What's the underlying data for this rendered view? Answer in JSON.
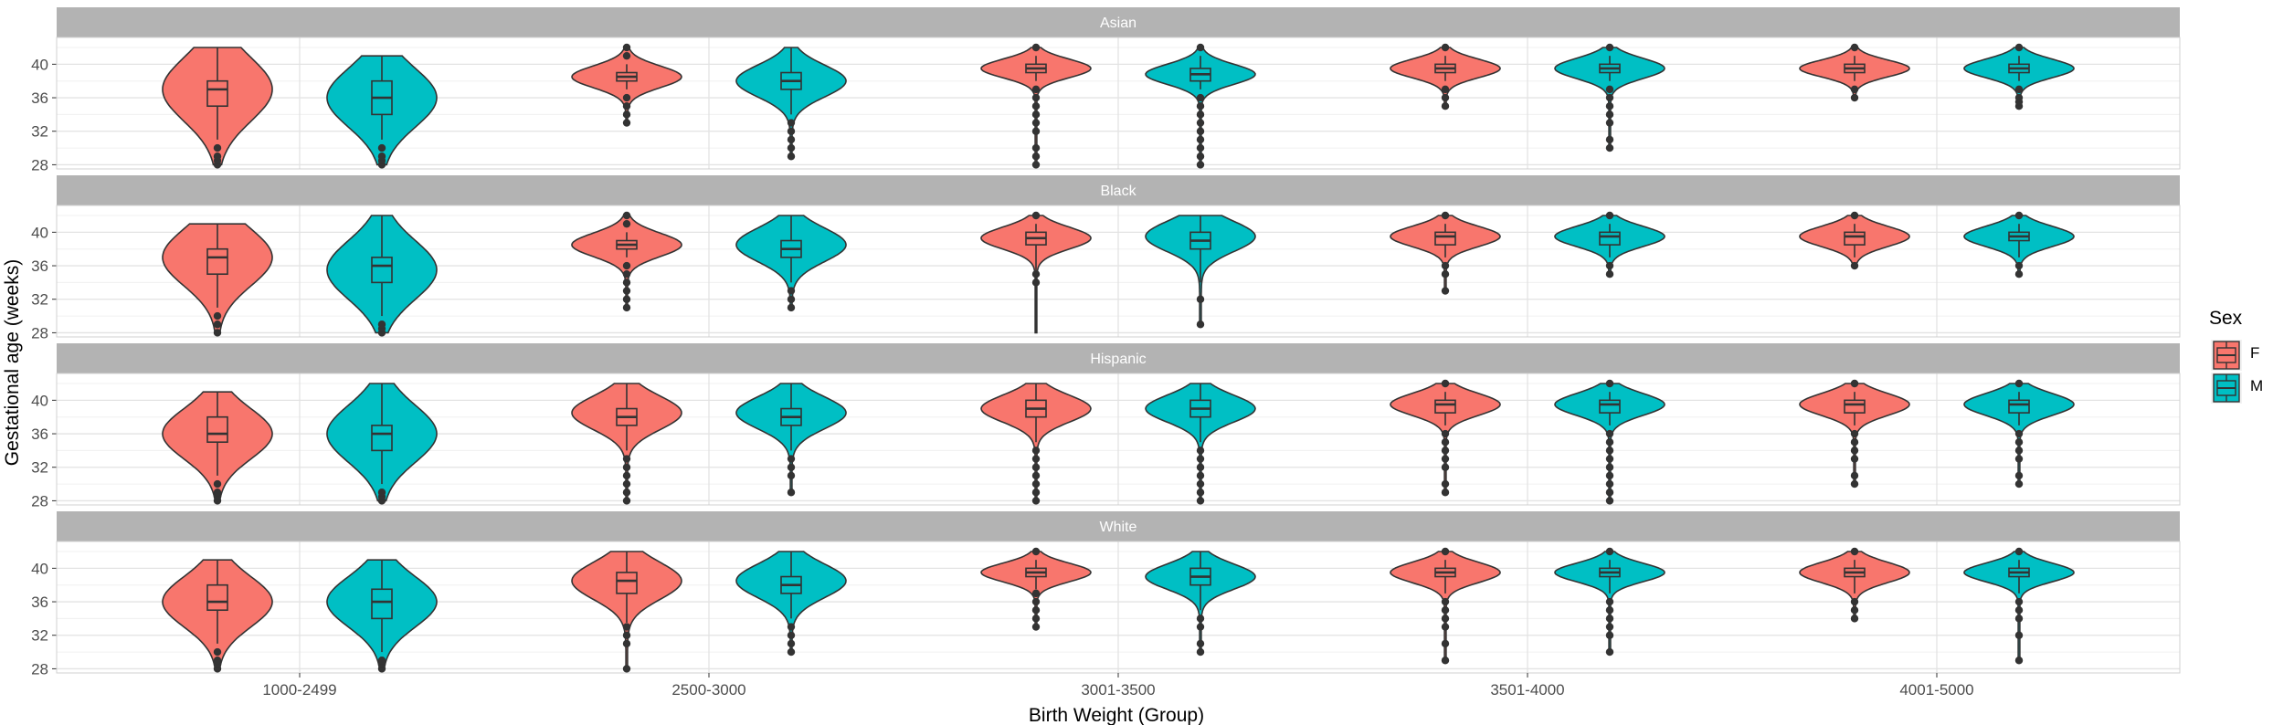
{
  "chart_data": {
    "type": "violin",
    "facets": [
      "Asian",
      "Black",
      "Hispanic",
      "White"
    ],
    "categories": [
      "1000-2499",
      "2500-3000",
      "3001-3500",
      "3501-4000",
      "4001-5000"
    ],
    "xlabel": "Birth Weight (Group)",
    "ylabel": "Gestational age (weeks)",
    "y_ticks": [
      28,
      32,
      36,
      40
    ],
    "ylim": [
      27.5,
      43.2
    ],
    "grid": true,
    "legend": {
      "title": "Sex",
      "position": "right",
      "entries": [
        "F",
        "M"
      ]
    },
    "colors": {
      "F": "#F8766D",
      "M": "#00BFC4",
      "strip": "#b3b3b3",
      "outline": "#333333"
    },
    "panels": {
      "Asian": {
        "F": [
          {
            "violin": {
              "min": 28,
              "max": 42,
              "mode": 37,
              "spread": 3.8
            },
            "box": {
              "q1": 35,
              "median": 37,
              "q3": 38,
              "low": 31,
              "high": 42
            },
            "outliers": [
              28,
              28.5,
              29,
              30
            ]
          },
          {
            "violin": {
              "min": 33,
              "max": 42,
              "mode": 38.5,
              "spread": 1.3
            },
            "box": {
              "q1": 38,
              "median": 38.5,
              "q3": 39,
              "low": 37,
              "high": 40
            },
            "outliers": [
              33,
              34,
              35,
              36,
              41,
              42
            ]
          },
          {
            "violin": {
              "min": 28,
              "max": 42,
              "mode": 39.5,
              "spread": 1.1
            },
            "box": {
              "q1": 39,
              "median": 39.5,
              "q3": 40,
              "low": 38,
              "high": 41
            },
            "outliers": [
              28,
              29,
              30,
              32,
              33,
              34,
              35,
              36,
              37,
              42
            ]
          },
          {
            "violin": {
              "min": 35,
              "max": 42,
              "mode": 39.5,
              "spread": 1.1
            },
            "box": {
              "q1": 39,
              "median": 39.5,
              "q3": 40,
              "low": 38,
              "high": 41
            },
            "outliers": [
              35,
              36,
              37,
              42
            ]
          },
          {
            "violin": {
              "min": 36,
              "max": 42,
              "mode": 39.5,
              "spread": 1.0
            },
            "box": {
              "q1": 39,
              "median": 39.5,
              "q3": 40,
              "low": 38,
              "high": 41
            },
            "outliers": [
              36,
              37,
              42
            ]
          }
        ],
        "M": [
          {
            "violin": {
              "min": 28,
              "max": 41,
              "mode": 36,
              "spread": 3.5
            },
            "box": {
              "q1": 34,
              "median": 36,
              "q3": 38,
              "low": 31,
              "high": 41
            },
            "outliers": [
              28,
              28.5,
              29,
              30
            ]
          },
          {
            "violin": {
              "min": 29,
              "max": 42,
              "mode": 38,
              "spread": 1.9
            },
            "box": {
              "q1": 37,
              "median": 38,
              "q3": 39,
              "low": 34,
              "high": 42
            },
            "outliers": [
              29,
              30,
              31,
              32,
              33
            ]
          },
          {
            "violin": {
              "min": 28,
              "max": 42,
              "mode": 38.8,
              "spread": 1.2
            },
            "box": {
              "q1": 38,
              "median": 38.8,
              "q3": 39.5,
              "low": 37,
              "high": 41
            },
            "outliers": [
              28,
              29,
              30,
              31,
              32,
              33,
              34,
              35,
              36,
              42
            ]
          },
          {
            "violin": {
              "min": 30,
              "max": 42,
              "mode": 39.5,
              "spread": 1.2
            },
            "box": {
              "q1": 39,
              "median": 39.5,
              "q3": 40,
              "low": 38,
              "high": 41
            },
            "outliers": [
              30,
              31,
              33,
              34,
              35,
              36,
              37,
              42
            ]
          },
          {
            "violin": {
              "min": 35,
              "max": 42,
              "mode": 39.5,
              "spread": 1.1
            },
            "box": {
              "q1": 39,
              "median": 39.5,
              "q3": 40,
              "low": 38,
              "high": 41
            },
            "outliers": [
              35,
              35.5,
              36,
              37,
              42
            ]
          }
        ]
      },
      "Black": {
        "F": [
          {
            "violin": {
              "min": 28,
              "max": 41,
              "mode": 37,
              "spread": 3.4
            },
            "box": {
              "q1": 35,
              "median": 37,
              "q3": 38,
              "low": 31,
              "high": 41
            },
            "outliers": [
              28,
              29,
              30
            ]
          },
          {
            "violin": {
              "min": 31,
              "max": 42,
              "mode": 38.5,
              "spread": 1.4
            },
            "box": {
              "q1": 38,
              "median": 38.5,
              "q3": 39,
              "low": 37,
              "high": 40
            },
            "outliers": [
              31,
              32,
              33,
              34,
              35,
              36,
              41,
              42
            ]
          },
          {
            "violin": {
              "min": 28,
              "max": 42,
              "mode": 39.3,
              "spread": 1.3
            },
            "box": {
              "q1": 38.5,
              "median": 39.3,
              "q3": 40,
              "low": 28,
              "high": 41
            },
            "outliers": [
              34,
              35,
              42
            ]
          },
          {
            "violin": {
              "min": 33,
              "max": 42,
              "mode": 39.5,
              "spread": 1.2
            },
            "box": {
              "q1": 38.5,
              "median": 39.5,
              "q3": 40,
              "low": 37,
              "high": 41
            },
            "outliers": [
              33,
              35,
              36,
              42
            ]
          },
          {
            "violin": {
              "min": 36,
              "max": 42,
              "mode": 39.5,
              "spread": 1.2
            },
            "box": {
              "q1": 38.5,
              "median": 39.5,
              "q3": 40,
              "low": 37,
              "high": 41
            },
            "outliers": [
              36,
              42
            ]
          }
        ],
        "M": [
          {
            "violin": {
              "min": 28,
              "max": 42,
              "mode": 35.5,
              "spread": 3.5
            },
            "box": {
              "q1": 34,
              "median": 36,
              "q3": 37,
              "low": 30,
              "high": 42
            },
            "outliers": [
              28,
              28.5,
              29
            ]
          },
          {
            "violin": {
              "min": 31,
              "max": 42,
              "mode": 38.5,
              "spread": 2.0
            },
            "box": {
              "q1": 37,
              "median": 38,
              "q3": 39,
              "low": 34,
              "high": 42
            },
            "outliers": [
              31,
              32,
              33
            ]
          },
          {
            "violin": {
              "min": 29,
              "max": 42,
              "mode": 39.5,
              "spread": 1.8
            },
            "box": {
              "q1": 38,
              "median": 39,
              "q3": 40,
              "low": 34,
              "high": 42
            },
            "outliers": [
              29,
              32
            ]
          },
          {
            "violin": {
              "min": 35,
              "max": 42,
              "mode": 39.5,
              "spread": 1.2
            },
            "box": {
              "q1": 38.5,
              "median": 39.5,
              "q3": 40,
              "low": 37,
              "high": 41
            },
            "outliers": [
              35,
              36,
              42
            ]
          },
          {
            "violin": {
              "min": 35,
              "max": 42,
              "mode": 39.5,
              "spread": 1.2
            },
            "box": {
              "q1": 39,
              "median": 39.5,
              "q3": 40,
              "low": 37,
              "high": 41
            },
            "outliers": [
              35,
              36,
              42
            ]
          }
        ]
      },
      "Hispanic": {
        "F": [
          {
            "violin": {
              "min": 28,
              "max": 41,
              "mode": 36,
              "spread": 3.0
            },
            "box": {
              "q1": 35,
              "median": 36,
              "q3": 38,
              "low": 31,
              "high": 41
            },
            "outliers": [
              28,
              28.5,
              29,
              30
            ]
          },
          {
            "violin": {
              "min": 28,
              "max": 42,
              "mode": 38.5,
              "spread": 2.0
            },
            "box": {
              "q1": 37,
              "median": 38,
              "q3": 39,
              "low": 34,
              "high": 42
            },
            "outliers": [
              28,
              29,
              30,
              31,
              32,
              33
            ]
          },
          {
            "violin": {
              "min": 28,
              "max": 42,
              "mode": 39,
              "spread": 1.6
            },
            "box": {
              "q1": 38,
              "median": 39,
              "q3": 40,
              "low": 35,
              "high": 42
            },
            "outliers": [
              28,
              29,
              30,
              31,
              32,
              33,
              34
            ]
          },
          {
            "violin": {
              "min": 29,
              "max": 42,
              "mode": 39.5,
              "spread": 1.3
            },
            "box": {
              "q1": 38.5,
              "median": 39.5,
              "q3": 40,
              "low": 37,
              "high": 41
            },
            "outliers": [
              29,
              30,
              32,
              33,
              34,
              35,
              36,
              42
            ]
          },
          {
            "violin": {
              "min": 30,
              "max": 42,
              "mode": 39.5,
              "spread": 1.3
            },
            "box": {
              "q1": 38.5,
              "median": 39.5,
              "q3": 40,
              "low": 37,
              "high": 41
            },
            "outliers": [
              30,
              31,
              33,
              34,
              35,
              36,
              42
            ]
          }
        ],
        "M": [
          {
            "violin": {
              "min": 28,
              "max": 42,
              "mode": 36,
              "spread": 3.4
            },
            "box": {
              "q1": 34,
              "median": 36,
              "q3": 37,
              "low": 30,
              "high": 42
            },
            "outliers": [
              28,
              28.5,
              29
            ]
          },
          {
            "violin": {
              "min": 29,
              "max": 42,
              "mode": 38.5,
              "spread": 1.9
            },
            "box": {
              "q1": 37,
              "median": 38,
              "q3": 39,
              "low": 34,
              "high": 42
            },
            "outliers": [
              29,
              31,
              32,
              33
            ]
          },
          {
            "violin": {
              "min": 28,
              "max": 42,
              "mode": 39,
              "spread": 1.6
            },
            "box": {
              "q1": 38,
              "median": 39,
              "q3": 40,
              "low": 35,
              "high": 42
            },
            "outliers": [
              28,
              29,
              30,
              31,
              32,
              33,
              34
            ]
          },
          {
            "violin": {
              "min": 28,
              "max": 42,
              "mode": 39.5,
              "spread": 1.3
            },
            "box": {
              "q1": 38.5,
              "median": 39.5,
              "q3": 40,
              "low": 37,
              "high": 41
            },
            "outliers": [
              28,
              29,
              30,
              31,
              32,
              33,
              34,
              35,
              36,
              42
            ]
          },
          {
            "violin": {
              "min": 30,
              "max": 42,
              "mode": 39.5,
              "spread": 1.3
            },
            "box": {
              "q1": 38.5,
              "median": 39.5,
              "q3": 40,
              "low": 37,
              "high": 41
            },
            "outliers": [
              30,
              31,
              33,
              34,
              35,
              36,
              42
            ]
          }
        ]
      },
      "White": {
        "F": [
          {
            "violin": {
              "min": 28,
              "max": 41,
              "mode": 36,
              "spread": 3.0
            },
            "box": {
              "q1": 35,
              "median": 36,
              "q3": 38,
              "low": 31,
              "high": 41
            },
            "outliers": [
              28,
              28.5,
              29,
              30
            ]
          },
          {
            "violin": {
              "min": 28,
              "max": 42,
              "mode": 38.5,
              "spread": 2.2
            },
            "box": {
              "q1": 37,
              "median": 38.5,
              "q3": 39.5,
              "low": 33.5,
              "high": 42
            },
            "outliers": [
              28,
              31,
              32,
              33
            ]
          },
          {
            "violin": {
              "min": 33,
              "max": 42,
              "mode": 39.5,
              "spread": 1.1
            },
            "box": {
              "q1": 39,
              "median": 39.5,
              "q3": 40,
              "low": 37.5,
              "high": 41
            },
            "outliers": [
              33,
              34,
              35,
              36,
              37,
              42
            ]
          },
          {
            "violin": {
              "min": 29,
              "max": 42,
              "mode": 39.5,
              "spread": 1.2
            },
            "box": {
              "q1": 39,
              "median": 39.5,
              "q3": 40,
              "low": 37,
              "high": 41
            },
            "outliers": [
              29,
              31,
              33,
              34,
              35,
              36,
              42
            ]
          },
          {
            "violin": {
              "min": 34,
              "max": 42,
              "mode": 39.5,
              "spread": 1.2
            },
            "box": {
              "q1": 39,
              "median": 39.5,
              "q3": 40,
              "low": 37,
              "high": 41
            },
            "outliers": [
              34,
              35,
              36,
              42
            ]
          }
        ],
        "M": [
          {
            "violin": {
              "min": 28,
              "max": 41,
              "mode": 36,
              "spread": 3.0
            },
            "box": {
              "q1": 34,
              "median": 36,
              "q3": 37.5,
              "low": 30,
              "high": 41
            },
            "outliers": [
              28,
              28.5,
              29
            ]
          },
          {
            "violin": {
              "min": 30,
              "max": 42,
              "mode": 38.5,
              "spread": 2.0
            },
            "box": {
              "q1": 37,
              "median": 38,
              "q3": 39,
              "low": 34,
              "high": 42
            },
            "outliers": [
              30,
              31,
              32,
              33
            ]
          },
          {
            "violin": {
              "min": 30,
              "max": 42,
              "mode": 39,
              "spread": 1.5
            },
            "box": {
              "q1": 38,
              "median": 39,
              "q3": 40,
              "low": 35,
              "high": 42
            },
            "outliers": [
              30,
              31,
              33,
              34
            ]
          },
          {
            "violin": {
              "min": 30,
              "max": 42,
              "mode": 39.5,
              "spread": 1.1
            },
            "box": {
              "q1": 39,
              "median": 39.5,
              "q3": 40,
              "low": 37,
              "high": 41
            },
            "outliers": [
              30,
              32,
              33,
              34,
              35,
              36,
              42
            ]
          },
          {
            "violin": {
              "min": 29,
              "max": 42,
              "mode": 39.5,
              "spread": 1.1
            },
            "box": {
              "q1": 39,
              "median": 39.5,
              "q3": 40,
              "low": 37,
              "high": 41
            },
            "outliers": [
              29,
              32,
              34,
              35,
              36,
              42
            ]
          }
        ]
      }
    }
  }
}
